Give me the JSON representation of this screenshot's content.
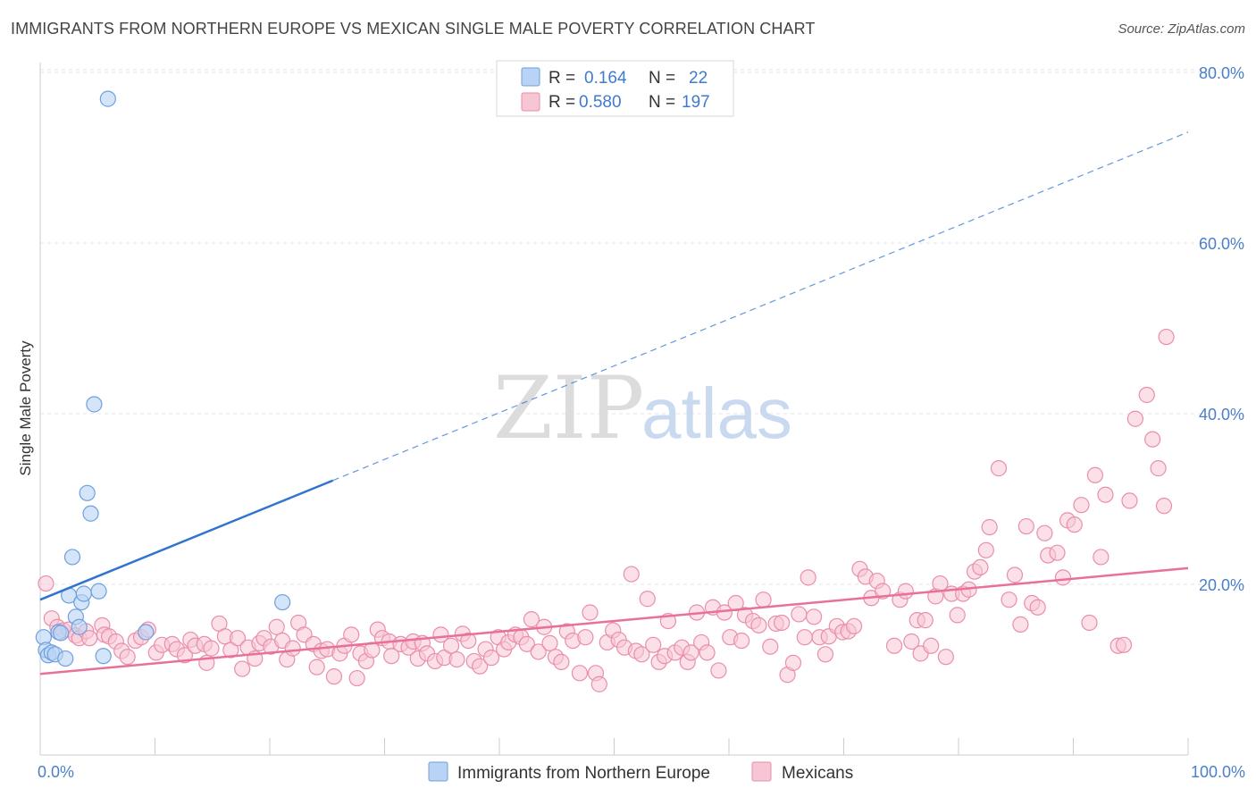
{
  "title": "IMMIGRANTS FROM NORTHERN EUROPE VS MEXICAN SINGLE MALE POVERTY CORRELATION CHART",
  "source": "Source: ZipAtlas.com",
  "watermark": {
    "zip": "ZIP",
    "atlas": "atlas"
  },
  "colors": {
    "blue_fill": "#b9d3f5",
    "blue_stroke": "#6f9fdc",
    "blue_line": "#2f74d0",
    "pink_fill": "#f7c6d5",
    "pink_stroke": "#e98eab",
    "pink_line": "#e8709a",
    "grid": "#e6e6e6",
    "tick_label": "#4a7fc9"
  },
  "legend": {
    "rows": [
      {
        "r_label": "R =",
        "r_value": "0.164",
        "n_label": "N =",
        "n_value": "22"
      },
      {
        "r_label": "R =",
        "r_value": "0.580",
        "n_label": "N =",
        "n_value": "197"
      }
    ]
  },
  "bottom_legend": [
    "Immigrants from Northern Europe",
    "Mexicans"
  ],
  "chart_data": {
    "type": "scatter",
    "title": "IMMIGRANTS FROM NORTHERN EUROPE VS MEXICAN SINGLE MALE POVERTY CORRELATION CHART",
    "xlabel": "",
    "ylabel": "Single Male Poverty",
    "xlim": [
      0,
      100
    ],
    "ylim": [
      0,
      82
    ],
    "x_tick_labels": [
      "0.0%",
      "100.0%"
    ],
    "y_ticks": [
      20,
      40,
      60,
      80
    ],
    "y_tick_labels": [
      "20.0%",
      "40.0%",
      "60.0%",
      "80.0%"
    ],
    "grid": true,
    "legend_position": "top-center",
    "series": [
      {
        "name": "Immigrants from Northern Europe",
        "points": [
          [
            0.3,
            13.8
          ],
          [
            0.5,
            12.3
          ],
          [
            0.7,
            11.7
          ],
          [
            1.0,
            12.0
          ],
          [
            1.3,
            11.8
          ],
          [
            1.6,
            14.4
          ],
          [
            1.8,
            14.3
          ],
          [
            2.2,
            11.3
          ],
          [
            2.5,
            18.7
          ],
          [
            2.8,
            23.2
          ],
          [
            3.1,
            16.2
          ],
          [
            3.4,
            15.0
          ],
          [
            3.6,
            17.9
          ],
          [
            3.8,
            18.9
          ],
          [
            4.1,
            30.7
          ],
          [
            4.4,
            28.3
          ],
          [
            4.7,
            41.1
          ],
          [
            5.1,
            19.2
          ],
          [
            5.5,
            11.6
          ],
          [
            5.9,
            76.9
          ],
          [
            9.2,
            14.4
          ],
          [
            21.1,
            17.9
          ]
        ],
        "trend": {
          "x0": 0,
          "y0": 18.2,
          "x1": 100,
          "y1": 73.0,
          "solid_until_x": 25.5
        }
      },
      {
        "name": "Mexicans",
        "points": [
          [
            0.5,
            20.1
          ],
          [
            1.0,
            16.0
          ],
          [
            1.5,
            15.0
          ],
          [
            2.0,
            14.6
          ],
          [
            2.5,
            14.7
          ],
          [
            3.1,
            14.0
          ],
          [
            3.4,
            13.7
          ],
          [
            4.0,
            14.5
          ],
          [
            4.3,
            13.7
          ],
          [
            5.4,
            15.2
          ],
          [
            5.6,
            14.1
          ],
          [
            6.0,
            13.9
          ],
          [
            6.6,
            13.3
          ],
          [
            7.1,
            12.2
          ],
          [
            7.6,
            11.5
          ],
          [
            8.3,
            13.4
          ],
          [
            8.8,
            13.8
          ],
          [
            9.4,
            14.7
          ],
          [
            10.1,
            12.0
          ],
          [
            10.6,
            12.9
          ],
          [
            11.5,
            13.0
          ],
          [
            11.9,
            12.4
          ],
          [
            12.6,
            11.7
          ],
          [
            13.1,
            13.5
          ],
          [
            13.5,
            12.8
          ],
          [
            14.3,
            13.0
          ],
          [
            14.5,
            10.8
          ],
          [
            14.9,
            12.5
          ],
          [
            15.6,
            15.4
          ],
          [
            16.1,
            13.9
          ],
          [
            16.6,
            12.3
          ],
          [
            17.2,
            13.7
          ],
          [
            17.6,
            10.1
          ],
          [
            18.1,
            12.6
          ],
          [
            18.7,
            11.3
          ],
          [
            19.1,
            13.1
          ],
          [
            19.5,
            13.7
          ],
          [
            20.1,
            12.7
          ],
          [
            20.6,
            15.0
          ],
          [
            21.1,
            13.4
          ],
          [
            21.5,
            11.2
          ],
          [
            22.0,
            12.5
          ],
          [
            22.5,
            15.5
          ],
          [
            23.0,
            14.1
          ],
          [
            23.8,
            13.0
          ],
          [
            24.1,
            10.3
          ],
          [
            24.5,
            12.2
          ],
          [
            25.0,
            12.4
          ],
          [
            25.6,
            9.2
          ],
          [
            26.1,
            11.9
          ],
          [
            26.5,
            12.8
          ],
          [
            27.1,
            14.1
          ],
          [
            27.6,
            9.0
          ],
          [
            27.9,
            11.9
          ],
          [
            28.4,
            11.0
          ],
          [
            28.9,
            12.3
          ],
          [
            29.4,
            14.7
          ],
          [
            29.8,
            13.7
          ],
          [
            30.4,
            13.3
          ],
          [
            30.6,
            11.6
          ],
          [
            31.4,
            13.0
          ],
          [
            32.1,
            12.6
          ],
          [
            32.5,
            13.3
          ],
          [
            32.9,
            11.3
          ],
          [
            33.3,
            13.1
          ],
          [
            33.7,
            11.9
          ],
          [
            34.4,
            11.0
          ],
          [
            34.9,
            14.1
          ],
          [
            35.2,
            11.4
          ],
          [
            35.8,
            12.8
          ],
          [
            36.3,
            11.2
          ],
          [
            36.8,
            14.2
          ],
          [
            37.3,
            13.4
          ],
          [
            37.8,
            11.0
          ],
          [
            38.3,
            10.4
          ],
          [
            38.8,
            12.4
          ],
          [
            39.3,
            11.4
          ],
          [
            39.9,
            13.8
          ],
          [
            40.4,
            12.4
          ],
          [
            40.8,
            13.2
          ],
          [
            41.4,
            14.1
          ],
          [
            41.9,
            13.8
          ],
          [
            42.4,
            13.0
          ],
          [
            42.8,
            15.9
          ],
          [
            43.4,
            12.1
          ],
          [
            43.9,
            15.0
          ],
          [
            44.4,
            13.1
          ],
          [
            44.9,
            11.5
          ],
          [
            45.4,
            10.9
          ],
          [
            45.9,
            14.5
          ],
          [
            46.4,
            13.4
          ],
          [
            47.0,
            9.6
          ],
          [
            47.5,
            13.8
          ],
          [
            47.9,
            16.7
          ],
          [
            48.4,
            9.6
          ],
          [
            48.7,
            8.3
          ],
          [
            49.4,
            13.2
          ],
          [
            49.9,
            14.6
          ],
          [
            50.4,
            13.5
          ],
          [
            50.9,
            12.6
          ],
          [
            51.5,
            21.2
          ],
          [
            51.9,
            12.2
          ],
          [
            52.4,
            11.8
          ],
          [
            52.9,
            18.3
          ],
          [
            53.4,
            12.9
          ],
          [
            53.9,
            10.9
          ],
          [
            54.4,
            11.6
          ],
          [
            54.7,
            15.7
          ],
          [
            55.3,
            12.0
          ],
          [
            55.9,
            12.6
          ],
          [
            56.4,
            10.9
          ],
          [
            56.7,
            12.0
          ],
          [
            57.2,
            16.7
          ],
          [
            57.6,
            13.2
          ],
          [
            58.1,
            12.0
          ],
          [
            58.6,
            17.3
          ],
          [
            59.1,
            9.9
          ],
          [
            59.6,
            16.7
          ],
          [
            60.1,
            13.8
          ],
          [
            60.6,
            17.8
          ],
          [
            61.1,
            13.4
          ],
          [
            61.4,
            16.4
          ],
          [
            62.1,
            15.7
          ],
          [
            62.6,
            15.2
          ],
          [
            63.0,
            18.2
          ],
          [
            63.6,
            12.7
          ],
          [
            64.1,
            15.4
          ],
          [
            64.6,
            15.5
          ],
          [
            65.1,
            9.4
          ],
          [
            65.6,
            10.8
          ],
          [
            66.1,
            16.5
          ],
          [
            66.6,
            13.8
          ],
          [
            66.9,
            20.8
          ],
          [
            67.4,
            16.2
          ],
          [
            67.9,
            13.8
          ],
          [
            68.4,
            11.8
          ],
          [
            68.7,
            13.9
          ],
          [
            69.4,
            15.1
          ],
          [
            69.9,
            14.4
          ],
          [
            70.4,
            14.5
          ],
          [
            70.9,
            15.1
          ],
          [
            71.4,
            21.8
          ],
          [
            71.9,
            20.9
          ],
          [
            72.4,
            18.4
          ],
          [
            72.9,
            20.4
          ],
          [
            73.4,
            19.2
          ],
          [
            74.4,
            12.8
          ],
          [
            74.9,
            18.2
          ],
          [
            75.4,
            19.2
          ],
          [
            75.9,
            13.3
          ],
          [
            76.4,
            15.8
          ],
          [
            76.7,
            11.9
          ],
          [
            77.1,
            15.8
          ],
          [
            77.6,
            12.8
          ],
          [
            78.0,
            18.6
          ],
          [
            78.4,
            20.1
          ],
          [
            78.9,
            11.5
          ],
          [
            79.4,
            18.9
          ],
          [
            79.9,
            16.4
          ],
          [
            80.4,
            18.9
          ],
          [
            80.9,
            19.4
          ],
          [
            81.4,
            21.5
          ],
          [
            81.9,
            22.0
          ],
          [
            82.4,
            24.0
          ],
          [
            82.7,
            26.7
          ],
          [
            83.5,
            33.6
          ],
          [
            84.4,
            18.2
          ],
          [
            84.9,
            21.1
          ],
          [
            85.4,
            15.3
          ],
          [
            85.9,
            26.8
          ],
          [
            86.4,
            17.8
          ],
          [
            86.9,
            17.3
          ],
          [
            87.5,
            26.0
          ],
          [
            87.8,
            23.4
          ],
          [
            88.6,
            23.7
          ],
          [
            89.1,
            20.8
          ],
          [
            89.5,
            27.5
          ],
          [
            90.1,
            27.0
          ],
          [
            90.7,
            29.3
          ],
          [
            91.4,
            15.5
          ],
          [
            91.9,
            32.8
          ],
          [
            92.4,
            23.2
          ],
          [
            92.8,
            30.5
          ],
          [
            93.9,
            12.8
          ],
          [
            94.4,
            12.9
          ],
          [
            94.9,
            29.8
          ],
          [
            95.4,
            39.4
          ],
          [
            96.4,
            42.2
          ],
          [
            96.9,
            37.0
          ],
          [
            97.4,
            33.6
          ],
          [
            97.9,
            29.2
          ],
          [
            98.1,
            49.0
          ]
        ],
        "trend": {
          "x0": 0,
          "y0": 9.5,
          "x1": 100,
          "y1": 21.9
        }
      }
    ]
  }
}
